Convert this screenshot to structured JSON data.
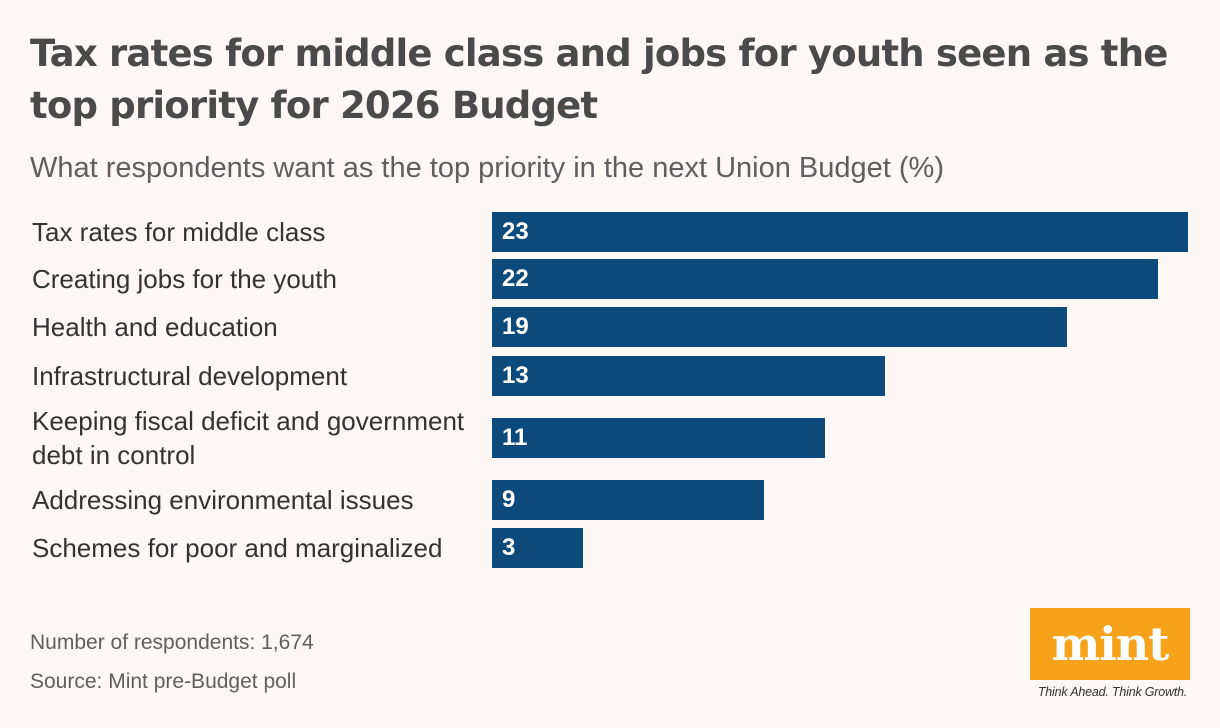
{
  "colors": {
    "background": "#fdf8f6",
    "bar": "#0d4a7c",
    "brand": "#f7a21b"
  },
  "chart_data": {
    "type": "bar",
    "orientation": "horizontal",
    "title": "Tax rates for middle class and jobs for youth seen as the top priority for 2026 Budget",
    "subtitle": "What respondents want as the top priority in the next Union Budget (%)",
    "categories": [
      "Tax rates for middle class",
      "Creating jobs for the youth",
      "Health and education",
      "Infrastructural development",
      "Keeping fiscal deficit and government debt in control",
      "Addressing environmental issues",
      "Schemes for poor and marginalized"
    ],
    "values": [
      23,
      22,
      19,
      13,
      11,
      9,
      3
    ],
    "xlim": [
      0,
      23
    ],
    "grid": false,
    "data_labels": true
  },
  "footer": {
    "respondents": "Number of respondents: 1,674",
    "source": "Source: Mint pre-Budget poll"
  },
  "logo": {
    "text": "mint",
    "tagline": "Think Ahead. Think Growth."
  }
}
